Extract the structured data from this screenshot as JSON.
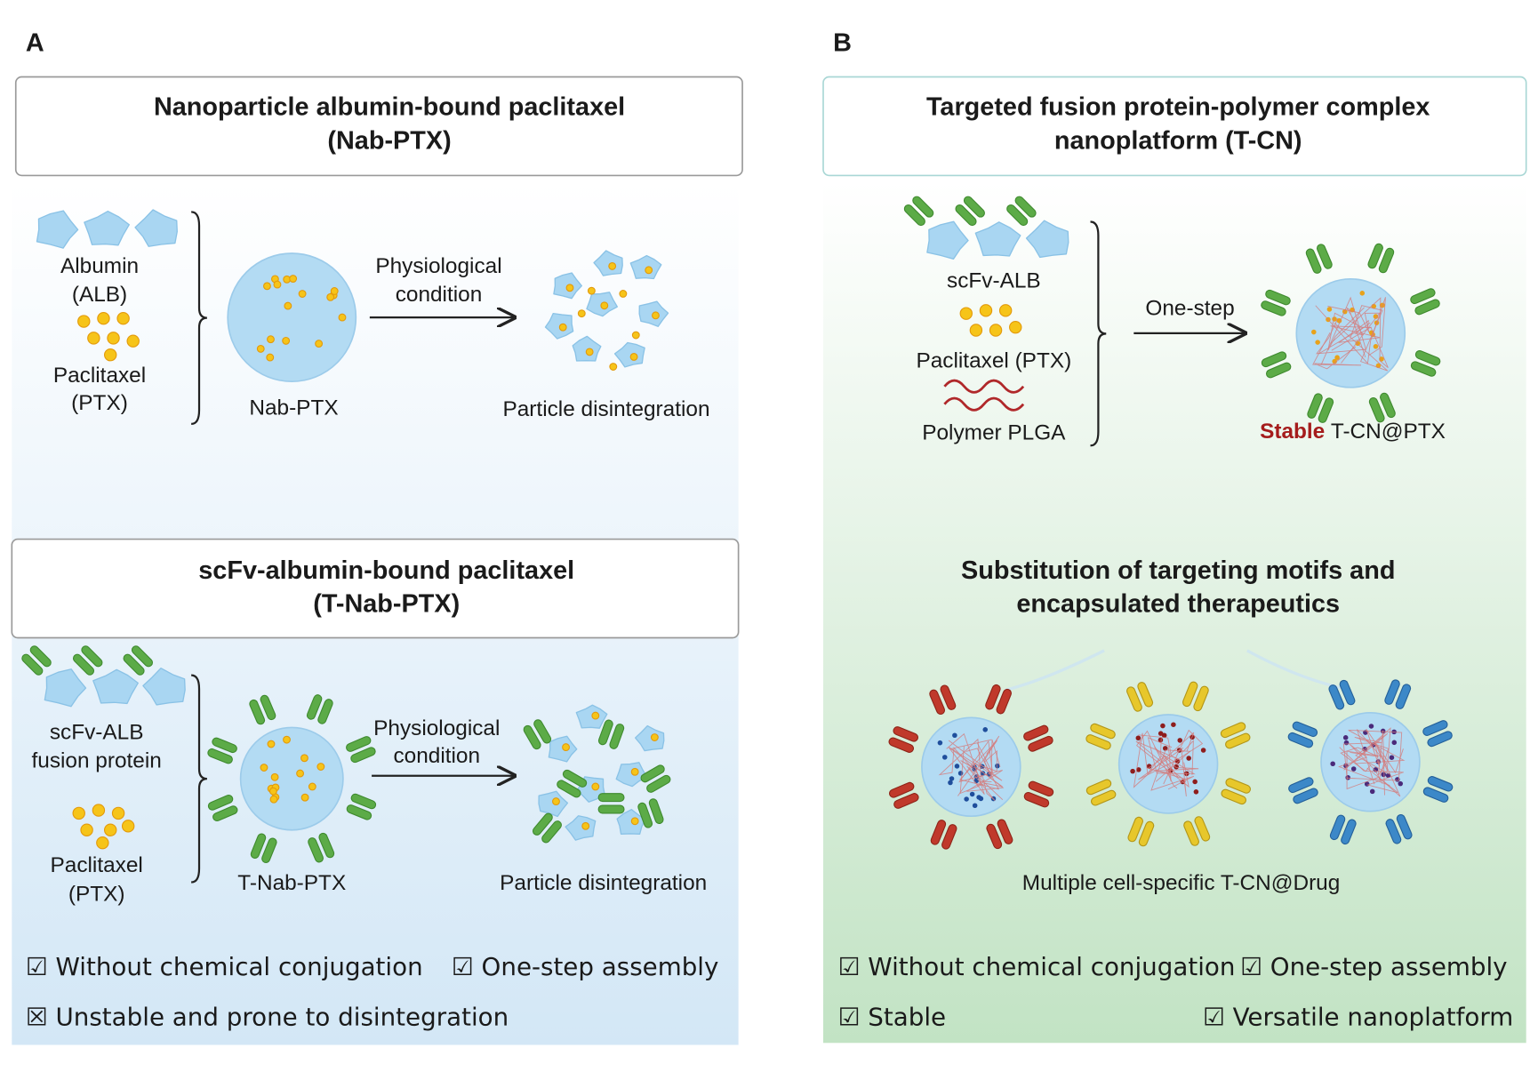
{
  "panel_a": {
    "label": "A",
    "top": {
      "title": [
        "Nanoparticle albumin-bound paclitaxel",
        "(Nab-PTX)"
      ],
      "albumin": [
        "Albumin",
        "(ALB)"
      ],
      "paclitaxel": [
        "Paclitaxel",
        "(PTX)"
      ],
      "product": "Nab-PTX",
      "arrow": [
        "Physiological",
        "condition"
      ],
      "outcome": "Particle disintegration"
    },
    "bottom": {
      "title": [
        "scFv-albumin-bound paclitaxel",
        "(T-Nab-PTX)"
      ],
      "protein": [
        "scFv-ALB",
        "fusion protein"
      ],
      "paclitaxel": [
        "Paclitaxel",
        "(PTX)"
      ],
      "product": "T-Nab-PTX",
      "arrow": [
        "Physiological",
        "condition"
      ],
      "outcome": "Particle disintegration"
    },
    "checklist": [
      "☑ Without chemical conjugation",
      "☑ One-step assembly",
      "☒ Unstable and prone to disintegration"
    ]
  },
  "panel_b": {
    "label": "B",
    "top": {
      "title": [
        "Targeted fusion protein-polymer complex",
        "nanoplatform (T-CN)"
      ],
      "protein": "scFv-ALB",
      "drug": "Paclitaxel (PTX)",
      "polymer": "Polymer PLGA",
      "arrow": "One-step",
      "product": [
        "Stable",
        "T-CN@PTX"
      ]
    },
    "middle": {
      "title": [
        "Substitution of targeting motifs and",
        "encapsulated therapeutics"
      ],
      "caption": "Multiple cell-specific T-CN@Drug"
    },
    "checklist": [
      "☑ Without chemical conjugation",
      "☑ One-step assembly",
      "☑ Stable",
      "☑ Versatile nanoplatform"
    ]
  }
}
